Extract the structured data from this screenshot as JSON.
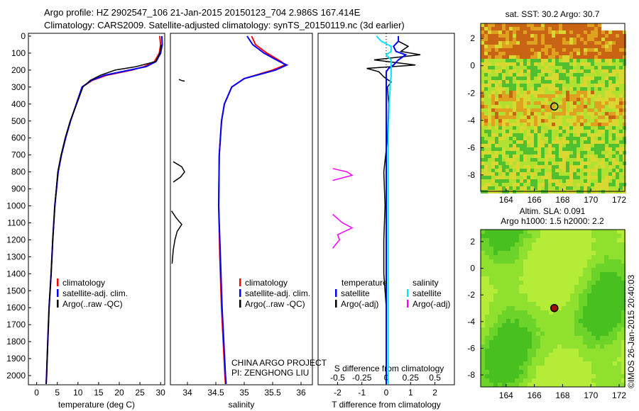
{
  "title_line1": "Argo profile: HZ 2902547_106 21-Jan-2015 20150123_704 2.986S 167.414E",
  "title_line2": "Climatology: CARS2009. Satellite-adjusted climatology: synTS_20150119.nc (3d earlier)",
  "colors": {
    "climatology": "#ff0000",
    "satellite": "#0000ff",
    "argo": "#000000",
    "sal_satellite": "#00e5ff",
    "sal_argo": "#ff00ff"
  },
  "chart_data": [
    {
      "type": "line",
      "name": "temperature",
      "xlabel": "temperature (deg C)",
      "ylabel": "",
      "xlim": [
        -2,
        31
      ],
      "ylim": [
        2050,
        0
      ],
      "xticks": [
        0,
        5,
        10,
        15,
        20,
        25,
        30
      ],
      "yticks": [
        0,
        100,
        200,
        300,
        400,
        500,
        600,
        700,
        800,
        900,
        1000,
        1100,
        1200,
        1300,
        1400,
        1500,
        1600,
        1700,
        1800,
        1900,
        2000
      ],
      "legend": [
        "climatology",
        "satellite-adj. clim.",
        "Argo(..raw -QC)"
      ],
      "depth": [
        0,
        50,
        100,
        150,
        180,
        200,
        230,
        260,
        300,
        400,
        500,
        600,
        700,
        800,
        1000,
        1200,
        1400,
        1600,
        1800,
        2000,
        2050
      ],
      "series": [
        {
          "name": "climatology",
          "values": [
            29.8,
            30,
            29.7,
            28.5,
            26,
            23,
            17,
            13.5,
            11,
            9.6,
            8.2,
            7.0,
            6.0,
            5.2,
            4.4,
            3.9,
            3.5,
            3.0,
            2.7,
            2.4,
            2.3
          ]
        },
        {
          "name": "satellite-adj. clim.",
          "values": [
            30.3,
            30.4,
            30,
            28.9,
            26.5,
            22.5,
            16.5,
            13.3,
            11,
            9.6,
            8.2,
            7.0,
            6.0,
            5.2,
            4.4,
            3.9,
            3.5,
            3.0,
            2.7,
            2.4,
            2.3
          ]
        },
        {
          "name": "Argo(..raw -QC)",
          "values": [
            null,
            30.2,
            29.8,
            28.8,
            24,
            19,
            15.5,
            13,
            11.2,
            9.7,
            8.1,
            6.9,
            5.9,
            5.1,
            4.4,
            3.9,
            3.5,
            3.0,
            2.7,
            2.4,
            2.3
          ]
        }
      ]
    },
    {
      "type": "line",
      "name": "salinity",
      "xlabel": "salinity",
      "xlim": [
        33.7,
        36.2
      ],
      "ylim": [
        2050,
        0
      ],
      "xticks": [
        34,
        34.5,
        35,
        35.5,
        36
      ],
      "legend": [
        "climatology",
        "satellite-adj. clim.",
        "Argo(..raw -QC)"
      ],
      "depth": [
        0,
        50,
        100,
        150,
        170,
        200,
        250,
        300,
        400,
        500,
        700,
        1000,
        1300,
        1600,
        2000,
        2050
      ],
      "series": [
        {
          "name": "climatology",
          "values": [
            35.13,
            35.2,
            35.4,
            35.65,
            35.72,
            35.5,
            35.0,
            34.78,
            34.65,
            34.6,
            34.56,
            34.55,
            34.57,
            34.6,
            34.66,
            34.67
          ]
        },
        {
          "name": "satellite-adj. clim.",
          "values": [
            35.05,
            35.15,
            35.35,
            35.62,
            35.75,
            35.55,
            35.0,
            34.78,
            34.65,
            34.6,
            34.56,
            34.55,
            34.58,
            34.61,
            34.67,
            34.68
          ]
        }
      ],
      "argo_segments": [
        {
          "depth": [
            255,
            262,
            265
          ],
          "values": [
            33.85,
            33.9,
            33.95
          ]
        },
        {
          "depth": [
            740,
            770,
            800,
            830,
            860
          ],
          "values": [
            33.75,
            33.9,
            33.95,
            33.88,
            33.75
          ]
        },
        {
          "depth": [
            1030,
            1070,
            1110,
            1150,
            1200,
            1260,
            1340
          ],
          "values": [
            33.72,
            33.8,
            33.9,
            33.82,
            33.78,
            33.75,
            33.73
          ]
        }
      ]
    },
    {
      "type": "line",
      "name": "difference",
      "xlabel": "T difference from climatology",
      "x2label": "S difference from climatology",
      "xlim": [
        -2.8,
        2.8
      ],
      "xticks": [
        -2,
        -1,
        0,
        1,
        2
      ],
      "x2ticks": [
        -0.5,
        -0.25,
        0,
        0.25,
        0.5
      ],
      "legend": {
        "temperature": "temperature",
        "salinity": "salinity",
        "t_sat": "satellite",
        "t_argo": "Argo(-adj)",
        "s_sat": "satellite",
        "s_argo": "Argo(-adj)"
      },
      "depth": [
        0,
        30,
        60,
        90,
        110,
        140,
        170,
        190,
        210,
        240,
        270,
        300,
        400,
        600,
        800,
        1000,
        1200,
        1400,
        1600,
        2000,
        2050
      ],
      "series": [
        {
          "name": "T satellite",
          "values": [
            0.5,
            0.5,
            0.3,
            0.4,
            0.8,
            0.5,
            0.3,
            0.1,
            0,
            0,
            0,
            0,
            0,
            0,
            0,
            0,
            0,
            0,
            0,
            0,
            0
          ]
        },
        {
          "name": "T Argo(-adj)",
          "values": [
            null,
            0.5,
            0.9,
            0.6,
            1.4,
            -0.5,
            1.2,
            -0.8,
            -0.3,
            -0.1,
            0.2,
            0.05,
            0.1,
            0.05,
            -0.1,
            -0.05,
            -0.1,
            -0.1,
            0,
            0,
            0
          ]
        },
        {
          "name": "S satellite",
          "values": [
            -0.1,
            -0.05,
            0.05,
            0.05,
            0,
            0.05,
            0.05,
            0.05,
            0.05,
            0.05,
            0.04,
            0.04,
            0.03,
            0.02,
            0.02,
            0.02,
            0.02,
            0.02,
            0.02,
            0.02,
            0.02
          ]
        }
      ],
      "argo_s_segments": [
        {
          "depth": [
            780,
            800,
            820,
            850
          ],
          "values": [
            -0.55,
            -0.4,
            -0.35,
            -0.55
          ]
        },
        {
          "depth": [
            1050,
            1100,
            1130,
            1170,
            1200,
            1250
          ],
          "values": [
            -0.55,
            -0.45,
            -0.35,
            -0.5,
            -0.48,
            -0.55
          ]
        }
      ]
    },
    {
      "type": "heatmap",
      "name": "sst_map",
      "title": "sat. SST: 30.2 Argo: 30.7",
      "xlim": [
        162.2,
        172.4
      ],
      "ylim": [
        -9.2,
        3.1
      ],
      "xticks": [
        164,
        166,
        168,
        170,
        172
      ],
      "yticks": [
        2,
        0,
        -2,
        -4,
        -6,
        -8
      ],
      "float_position": [
        167.414,
        -2.986
      ]
    },
    {
      "type": "heatmap",
      "name": "sla_map",
      "title": "Altim. SLA: 0.091",
      "subtitle": "Argo h1000: 1.5 h2000: 2.2",
      "xlim": [
        162.2,
        172.4
      ],
      "ylim": [
        -8.9,
        2.9
      ],
      "xticks": [
        164,
        166,
        168,
        170,
        172
      ],
      "yticks": [
        2,
        0,
        -2,
        -4,
        -6,
        -8
      ],
      "float_position": [
        167.414,
        -2.986
      ]
    }
  ],
  "project_line1": "CHINA ARGO PROJECT",
  "project_line2": "PI: ZENGHONG LIU",
  "credit": "©IMOS 26-Jan-2015 20:40:03"
}
